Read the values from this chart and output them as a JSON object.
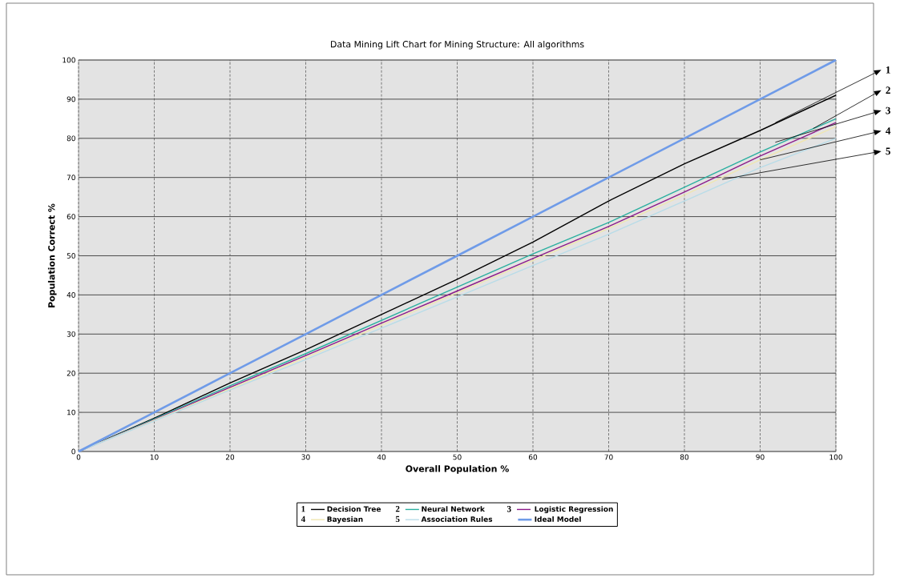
{
  "chart_data": {
    "type": "line",
    "title": "Data Mining Lift Chart for Mining Structure: All algorithms",
    "xlabel": "Overall Population %",
    "ylabel": "Population Correct %",
    "x": [
      0,
      10,
      20,
      30,
      40,
      50,
      60,
      70,
      80,
      90,
      100
    ],
    "series": [
      {
        "name": "Decision Tree",
        "color": "#000000",
        "values": [
          0,
          8.5,
          17.5,
          26,
          35,
          44,
          53.5,
          64,
          73.5,
          82,
          91
        ]
      },
      {
        "name": "Neural Network",
        "color": "#2aafa0",
        "values": [
          0,
          8.3,
          16.8,
          25,
          33.5,
          42,
          50.5,
          58.5,
          67.5,
          76.5,
          85
        ]
      },
      {
        "name": "Logistic Regression",
        "color": "#8b1a89",
        "values": [
          0,
          8.1,
          16.4,
          24.5,
          32.8,
          41,
          49.3,
          57.5,
          66.3,
          75.5,
          84
        ]
      },
      {
        "name": "Bayesian",
        "color": "#f0e6b0",
        "values": [
          0,
          8,
          16,
          24,
          32.3,
          40.5,
          48.8,
          57,
          65.5,
          74.5,
          83
        ]
      },
      {
        "name": "Association Rules",
        "color": "#b8dce8",
        "values": [
          0,
          7.8,
          15.7,
          23.5,
          31.5,
          39.5,
          47.5,
          55.5,
          64,
          72.5,
          80
        ]
      },
      {
        "name": "Ideal Model",
        "color": "#6f9be8",
        "values": [
          0,
          10,
          20,
          30,
          40,
          50,
          60,
          70,
          80,
          90,
          100
        ]
      }
    ],
    "xlim": [
      0,
      100
    ],
    "ylim": [
      0,
      100
    ],
    "xticks": [
      0,
      10,
      20,
      30,
      40,
      50,
      60,
      70,
      80,
      90,
      100
    ],
    "yticks": [
      0,
      10,
      20,
      30,
      40,
      50,
      60,
      70,
      80,
      90,
      100
    ],
    "annotations": [
      {
        "text": "1",
        "x": 92,
        "y": 84
      },
      {
        "text": "2",
        "x": 97,
        "y": 82.5
      },
      {
        "text": "3",
        "x": 92,
        "y": 79
      },
      {
        "text": "4",
        "x": 90,
        "y": 74.5
      },
      {
        "text": "5",
        "x": 85,
        "y": 69.5
      }
    ],
    "grid": true,
    "legend": "bottom",
    "marker": "none",
    "line_style": "solid"
  }
}
